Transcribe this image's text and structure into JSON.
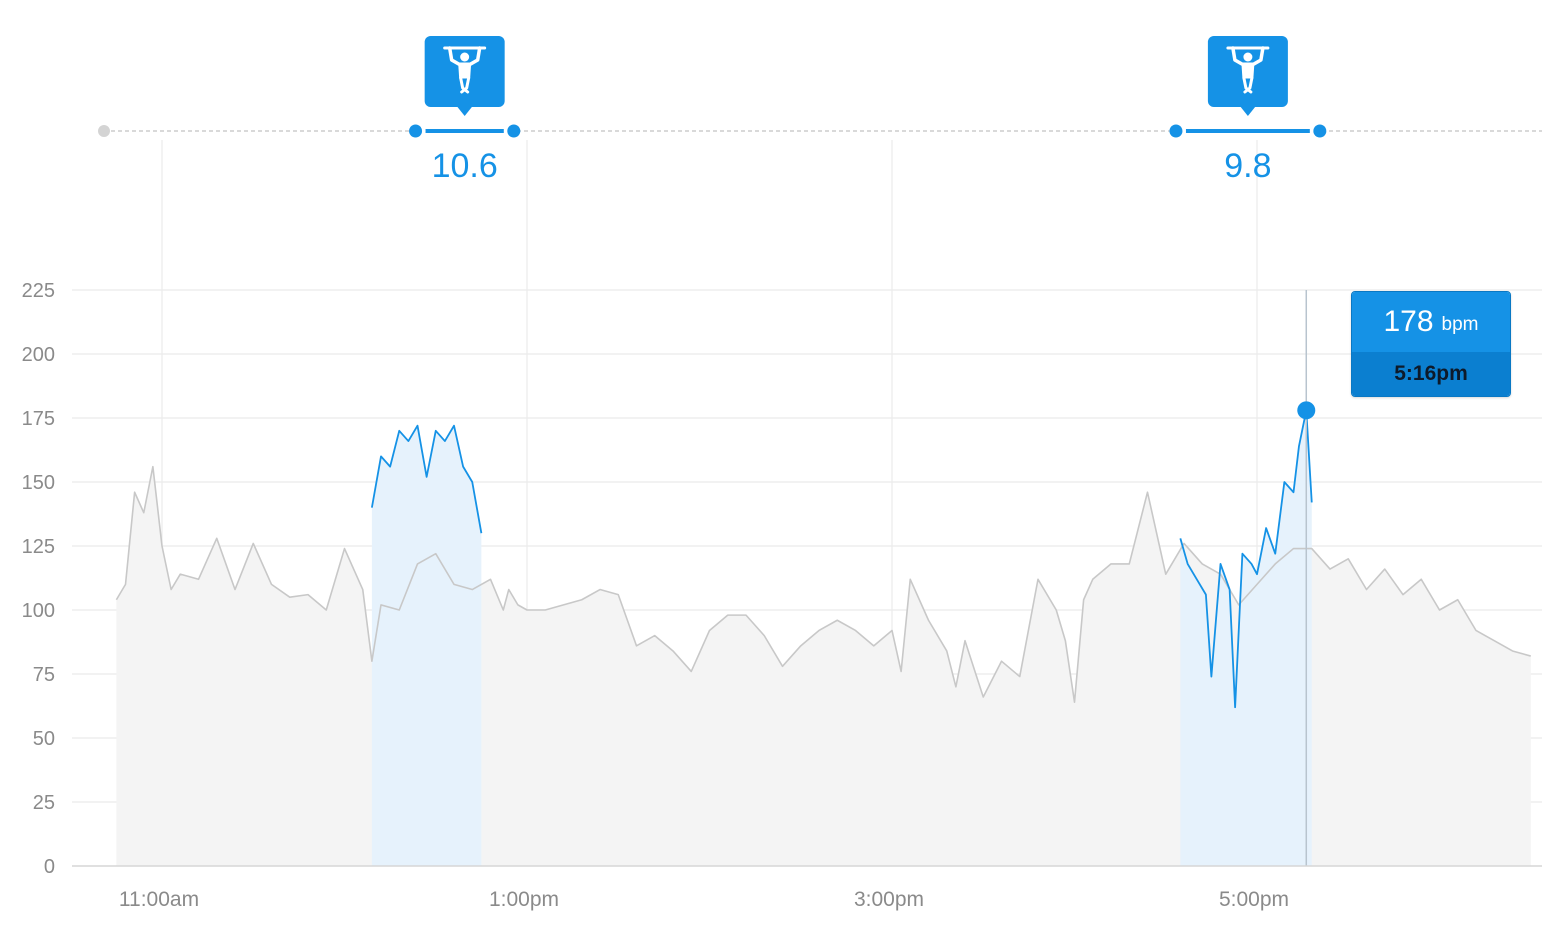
{
  "colors": {
    "accent": "#1592e6",
    "accent_dark": "#0b7fd0",
    "workout_fill": "#e6f2fc",
    "baseline_fill": "#f4f4f4",
    "line_grey": "#c8c8c8",
    "grid": "#ebebeb",
    "axis_label": "#8a8a8a"
  },
  "workouts": [
    {
      "icon": "pullup-person-icon",
      "value": "10.6",
      "start": "12:25pm",
      "end": "12:55pm"
    },
    {
      "icon": "pullup-person-icon",
      "value": "9.8",
      "start": "4:35pm",
      "end": "5:20pm"
    }
  ],
  "tooltip": {
    "bpm": "178",
    "unit": "bpm",
    "time": "5:16pm"
  },
  "chart_data": {
    "type": "line",
    "title": "",
    "xlabel": "",
    "ylabel": "",
    "ylim": [
      0,
      225
    ],
    "yticks": [
      0,
      25,
      50,
      75,
      100,
      125,
      150,
      175,
      200,
      225
    ],
    "xticks": [
      {
        "t": 11.0,
        "label": "11:00am"
      },
      {
        "t": 13.0,
        "label": "1:00pm"
      },
      {
        "t": 15.0,
        "label": "3:00pm"
      },
      {
        "t": 17.0,
        "label": "5:00pm"
      }
    ],
    "xlim_hours": [
      10.5,
      18.5
    ],
    "grid": true,
    "highlight_point": {
      "t": 17.27,
      "value": 178
    },
    "series": [
      {
        "values": [
          [
            10.75,
            104
          ],
          [
            10.8,
            110
          ],
          [
            10.85,
            146
          ],
          [
            10.9,
            138
          ],
          [
            10.95,
            156
          ],
          [
            11.0,
            125
          ],
          [
            11.05,
            108
          ],
          [
            11.1,
            114
          ],
          [
            11.2,
            112
          ],
          [
            11.3,
            128
          ],
          [
            11.4,
            108
          ],
          [
            11.5,
            126
          ],
          [
            11.6,
            110
          ],
          [
            11.7,
            105
          ],
          [
            11.8,
            106
          ],
          [
            11.9,
            100
          ],
          [
            12.0,
            124
          ],
          [
            12.1,
            108
          ],
          [
            12.15,
            80
          ],
          [
            12.2,
            102
          ],
          [
            12.3,
            100
          ],
          [
            12.4,
            118
          ],
          [
            12.5,
            122
          ],
          [
            12.6,
            110
          ],
          [
            12.7,
            108
          ],
          [
            12.8,
            112
          ],
          [
            12.87,
            100
          ],
          [
            12.9,
            108
          ],
          [
            12.95,
            102
          ],
          [
            13.0,
            100
          ],
          [
            13.1,
            100
          ],
          [
            13.2,
            102
          ],
          [
            13.3,
            104
          ],
          [
            13.4,
            108
          ],
          [
            13.5,
            106
          ],
          [
            13.6,
            86
          ],
          [
            13.7,
            90
          ],
          [
            13.8,
            84
          ],
          [
            13.9,
            76
          ],
          [
            14.0,
            92
          ],
          [
            14.1,
            98
          ],
          [
            14.2,
            98
          ],
          [
            14.3,
            90
          ],
          [
            14.4,
            78
          ],
          [
            14.5,
            86
          ],
          [
            14.6,
            92
          ],
          [
            14.7,
            96
          ],
          [
            14.8,
            92
          ],
          [
            14.9,
            86
          ],
          [
            15.0,
            92
          ],
          [
            15.05,
            76
          ],
          [
            15.1,
            112
          ],
          [
            15.2,
            96
          ],
          [
            15.3,
            84
          ],
          [
            15.35,
            70
          ],
          [
            15.4,
            88
          ],
          [
            15.5,
            66
          ],
          [
            15.6,
            80
          ],
          [
            15.7,
            74
          ],
          [
            15.8,
            112
          ],
          [
            15.9,
            100
          ],
          [
            15.95,
            88
          ],
          [
            16.0,
            64
          ],
          [
            16.05,
            104
          ],
          [
            16.1,
            112
          ],
          [
            16.2,
            118
          ],
          [
            16.3,
            118
          ],
          [
            16.4,
            146
          ],
          [
            16.5,
            114
          ],
          [
            16.6,
            126
          ],
          [
            16.7,
            118
          ],
          [
            16.8,
            114
          ],
          [
            16.9,
            102
          ],
          [
            17.0,
            110
          ],
          [
            17.1,
            118
          ],
          [
            17.2,
            124
          ],
          [
            17.3,
            124
          ],
          [
            17.4,
            116
          ],
          [
            17.5,
            120
          ],
          [
            17.6,
            108
          ],
          [
            17.7,
            116
          ],
          [
            17.8,
            106
          ],
          [
            17.9,
            112
          ],
          [
            18.0,
            100
          ],
          [
            18.1,
            104
          ],
          [
            18.2,
            92
          ],
          [
            18.3,
            88
          ],
          [
            18.4,
            84
          ],
          [
            18.5,
            82
          ]
        ]
      },
      {
        "values": [
          [
            12.15,
            140
          ],
          [
            12.2,
            160
          ],
          [
            12.25,
            156
          ],
          [
            12.3,
            170
          ],
          [
            12.35,
            166
          ],
          [
            12.4,
            172
          ],
          [
            12.45,
            152
          ],
          [
            12.5,
            170
          ],
          [
            12.55,
            166
          ],
          [
            12.6,
            172
          ],
          [
            12.65,
            156
          ],
          [
            12.7,
            150
          ],
          [
            12.75,
            130
          ]
        ]
      },
      {
        "values": [
          [
            16.58,
            128
          ],
          [
            16.62,
            118
          ],
          [
            16.67,
            112
          ],
          [
            16.72,
            106
          ],
          [
            16.75,
            74
          ],
          [
            16.8,
            118
          ],
          [
            16.85,
            108
          ],
          [
            16.88,
            62
          ],
          [
            16.92,
            122
          ],
          [
            16.97,
            118
          ],
          [
            17.0,
            114
          ],
          [
            17.05,
            132
          ],
          [
            17.1,
            122
          ],
          [
            17.15,
            150
          ],
          [
            17.2,
            146
          ],
          [
            17.23,
            164
          ],
          [
            17.27,
            178
          ],
          [
            17.3,
            142
          ]
        ]
      }
    ]
  }
}
